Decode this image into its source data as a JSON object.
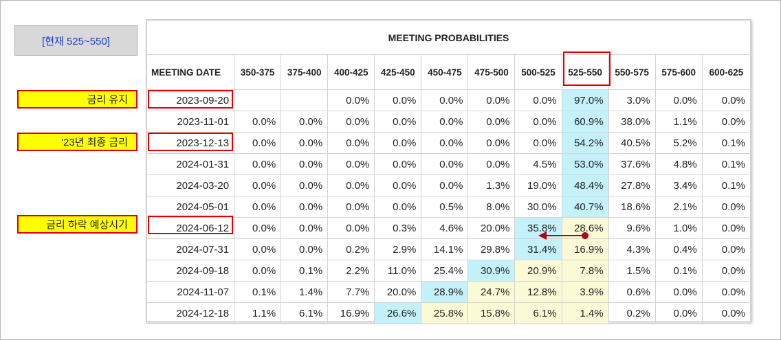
{
  "current_rate_label": "[현재 525~550]",
  "notes": [
    {
      "label": "금리 유지"
    },
    {
      "label": "'23년 최종 금리"
    },
    {
      "label": "금리 하락 예상시기"
    }
  ],
  "table": {
    "title": "MEETING PROBABILITIES",
    "columns": [
      "MEETING DATE",
      "350-375",
      "375-400",
      "400-425",
      "425-450",
      "450-475",
      "475-500",
      "500-525",
      "525-550",
      "550-575",
      "575-600",
      "600-625"
    ],
    "rows": [
      {
        "date": "2023-09-20",
        "values": [
          "",
          "",
          "0.0%",
          "0.0%",
          "0.0%",
          "0.0%",
          "0.0%",
          "97.0%",
          "3.0%",
          "0.0%",
          "0.0%"
        ],
        "shade": [
          "",
          "",
          "",
          "",
          "",
          "",
          "",
          "c",
          "",
          "",
          ""
        ]
      },
      {
        "date": "2023-11-01",
        "values": [
          "0.0%",
          "0.0%",
          "0.0%",
          "0.0%",
          "0.0%",
          "0.0%",
          "0.0%",
          "60.9%",
          "38.0%",
          "1.1%",
          "0.0%"
        ],
        "shade": [
          "",
          "",
          "",
          "",
          "",
          "",
          "",
          "c",
          "",
          "",
          ""
        ]
      },
      {
        "date": "2023-12-13",
        "values": [
          "0.0%",
          "0.0%",
          "0.0%",
          "0.0%",
          "0.0%",
          "0.0%",
          "0.0%",
          "54.2%",
          "40.5%",
          "5.2%",
          "0.1%"
        ],
        "shade": [
          "",
          "",
          "",
          "",
          "",
          "",
          "",
          "c",
          "",
          "",
          ""
        ]
      },
      {
        "date": "2024-01-31",
        "values": [
          "0.0%",
          "0.0%",
          "0.0%",
          "0.0%",
          "0.0%",
          "0.0%",
          "4.5%",
          "53.0%",
          "37.6%",
          "4.8%",
          "0.1%"
        ],
        "shade": [
          "",
          "",
          "",
          "",
          "",
          "",
          "",
          "c",
          "",
          "",
          ""
        ]
      },
      {
        "date": "2024-03-20",
        "values": [
          "0.0%",
          "0.0%",
          "0.0%",
          "0.0%",
          "0.0%",
          "1.3%",
          "19.0%",
          "48.4%",
          "27.8%",
          "3.4%",
          "0.1%"
        ],
        "shade": [
          "",
          "",
          "",
          "",
          "",
          "",
          "",
          "c",
          "",
          "",
          ""
        ]
      },
      {
        "date": "2024-05-01",
        "values": [
          "0.0%",
          "0.0%",
          "0.0%",
          "0.0%",
          "0.5%",
          "8.0%",
          "30.0%",
          "40.7%",
          "18.6%",
          "2.1%",
          "0.0%"
        ],
        "shade": [
          "",
          "",
          "",
          "",
          "",
          "",
          "",
          "c",
          "",
          "",
          ""
        ]
      },
      {
        "date": "2024-06-12",
        "values": [
          "0.0%",
          "0.0%",
          "0.0%",
          "0.3%",
          "4.6%",
          "20.0%",
          "35.8%",
          "28.6%",
          "9.6%",
          "1.0%",
          "0.0%"
        ],
        "shade": [
          "",
          "",
          "",
          "",
          "",
          "",
          "c",
          "y",
          "",
          "",
          ""
        ]
      },
      {
        "date": "2024-07-31",
        "values": [
          "0.0%",
          "0.0%",
          "0.2%",
          "2.9%",
          "14.1%",
          "29.8%",
          "31.4%",
          "16.9%",
          "4.3%",
          "0.4%",
          "0.0%"
        ],
        "shade": [
          "",
          "",
          "",
          "",
          "",
          "",
          "c",
          "y",
          "",
          "",
          ""
        ]
      },
      {
        "date": "2024-09-18",
        "values": [
          "0.0%",
          "0.1%",
          "2.2%",
          "11.0%",
          "25.4%",
          "30.9%",
          "20.9%",
          "7.8%",
          "1.5%",
          "0.1%",
          "0.0%"
        ],
        "shade": [
          "",
          "",
          "",
          "",
          "",
          "c",
          "y",
          "y",
          "",
          "",
          ""
        ]
      },
      {
        "date": "2024-11-07",
        "values": [
          "0.1%",
          "1.4%",
          "7.7%",
          "20.0%",
          "28.9%",
          "24.7%",
          "12.8%",
          "3.9%",
          "0.6%",
          "0.0%",
          "0.0%"
        ],
        "shade": [
          "",
          "",
          "",
          "",
          "c",
          "y",
          "y",
          "y",
          "",
          "",
          ""
        ]
      },
      {
        "date": "2024-12-18",
        "values": [
          "1.1%",
          "6.1%",
          "16.9%",
          "26.6%",
          "25.8%",
          "15.8%",
          "6.1%",
          "1.4%",
          "0.2%",
          "0.0%",
          "0.0%"
        ],
        "shade": [
          "",
          "",
          "",
          "c",
          "y",
          "y",
          "y",
          "y",
          "",
          "",
          ""
        ]
      }
    ]
  },
  "colors": {
    "highlight_border": "#e00000",
    "note_fill": "#ffff00",
    "cyan_cell": "#c5f1fb",
    "yellow_cell": "#fbfad7",
    "arrow": "#b0001a"
  }
}
